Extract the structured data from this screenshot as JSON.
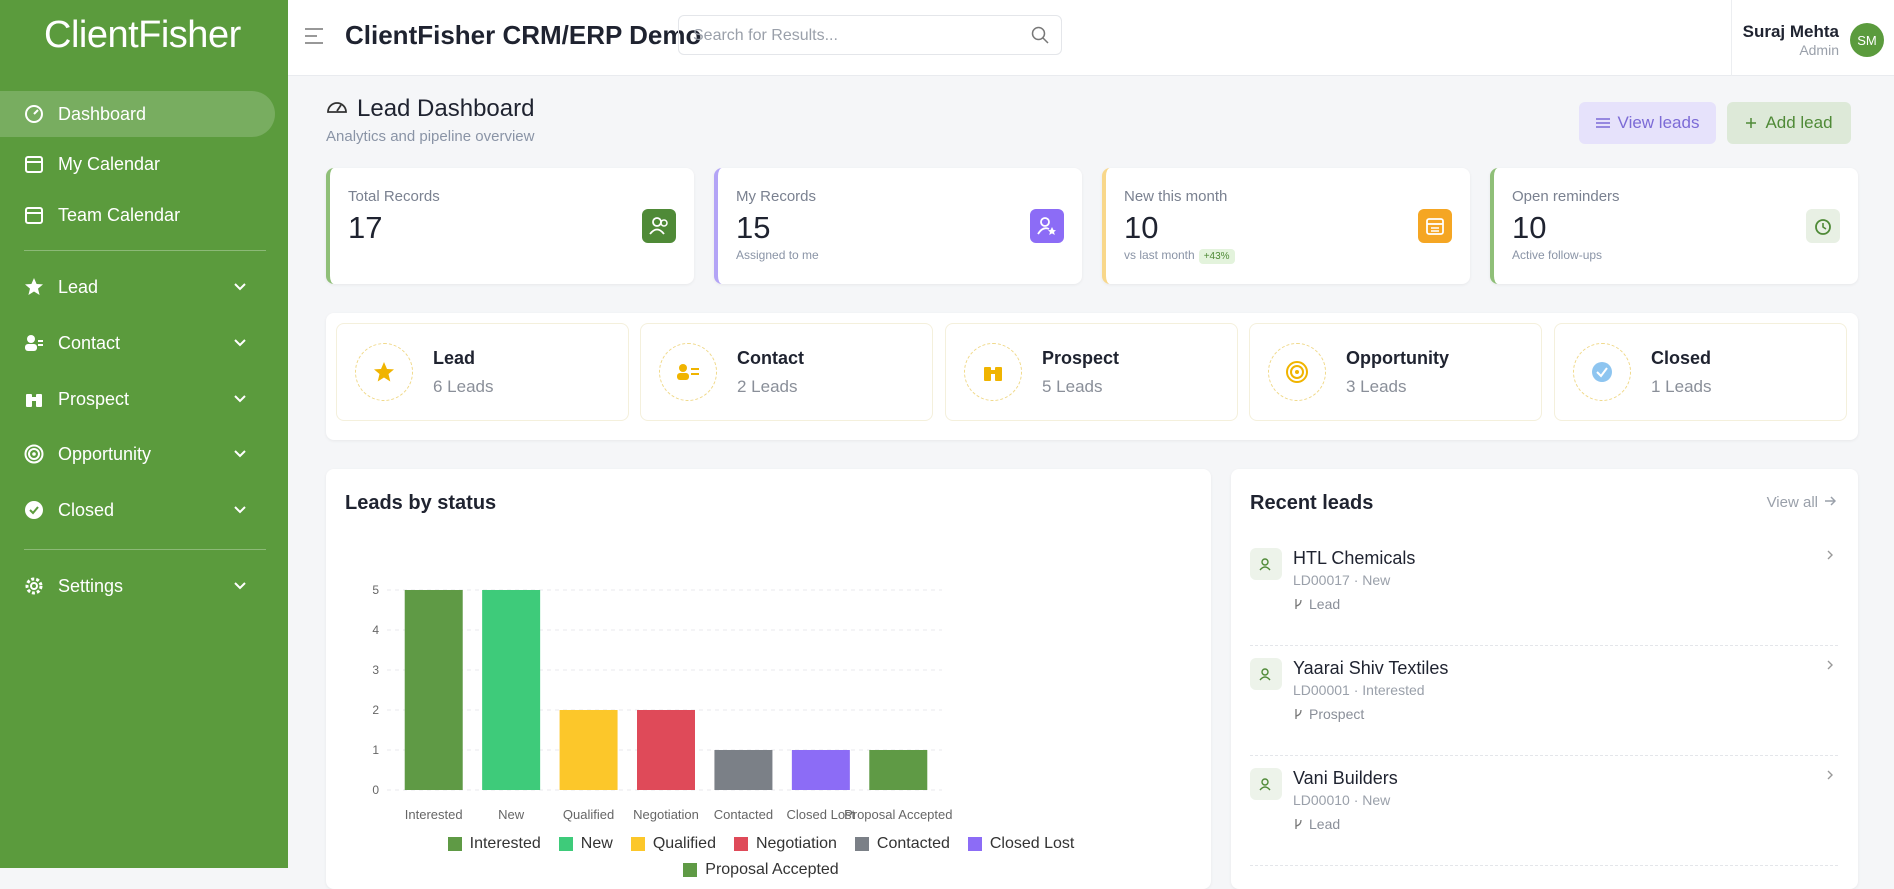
{
  "sidebar": {
    "brand": "ClientFisher",
    "menu": [
      {
        "label": "Dashboard"
      },
      {
        "label": "My Calendar"
      },
      {
        "label": "Team Calendar"
      },
      {
        "label": "Lead"
      },
      {
        "label": "Contact"
      },
      {
        "label": "Prospect"
      },
      {
        "label": "Opportunity"
      },
      {
        "label": "Closed"
      },
      {
        "label": "Settings"
      }
    ]
  },
  "header": {
    "app_title": "ClientFisher CRM/ERP Demo",
    "search_placeholder": "Search for Results...",
    "user_name": "Suraj Mehta",
    "user_role": "Admin",
    "avatar": "SM"
  },
  "page": {
    "title": "Lead Dashboard",
    "subtitle": "Analytics and pipeline overview",
    "view_button": "View leads",
    "add_button": "Add lead"
  },
  "stats": [
    {
      "label": "Total Records",
      "value": 17
    },
    {
      "label": "My Records",
      "value": 15,
      "note": "Assigned to me"
    },
    {
      "label": "New this month",
      "value": 10,
      "note": "vs last month",
      "badge": "+43%"
    },
    {
      "label": "Open reminders",
      "value": 10,
      "note": "Active follow-ups"
    }
  ],
  "stages": [
    {
      "name": "Lead",
      "count": "6 Leads"
    },
    {
      "name": "Contact",
      "count": "2 Leads"
    },
    {
      "name": "Prospect",
      "count": "5 Leads"
    },
    {
      "name": "Opportunity",
      "count": "3 Leads"
    },
    {
      "name": "Closed",
      "count": "1 Leads"
    }
  ],
  "chart_data": {
    "type": "bar",
    "title": "Leads by status",
    "categories": [
      "Interested",
      "New",
      "Qualified",
      "Negotiation",
      "Contacted",
      "Closed Lost",
      "Proposal Accepted"
    ],
    "values": [
      5,
      5,
      2,
      2,
      1,
      1,
      1
    ],
    "colors": [
      "#5f9a45",
      "#3ecb7a",
      "#fcc72a",
      "#df4a59",
      "#7b8087",
      "#8c6cf6",
      "#5f9a45"
    ],
    "ylim": [
      0,
      5
    ],
    "yticks": [
      0,
      1,
      2,
      3,
      4,
      5
    ],
    "grid": true,
    "legend": "bottom"
  },
  "recent": {
    "title": "Recent leads",
    "view_all": "View all",
    "items": [
      {
        "name": "HTL Chemicals",
        "meta": "LD00017 · New",
        "stage": "Lead"
      },
      {
        "name": "Yaarai Shiv Textiles",
        "meta": "LD00001 · Interested",
        "stage": "Prospect"
      },
      {
        "name": "Vani Builders",
        "meta": "LD00010 · New",
        "stage": "Lead"
      }
    ]
  }
}
